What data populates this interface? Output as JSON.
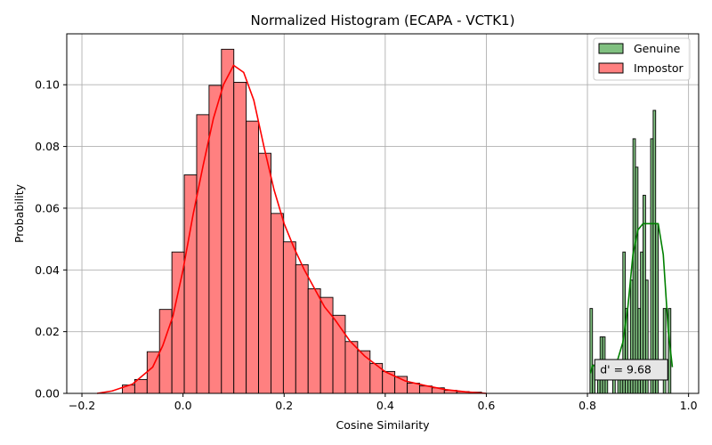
{
  "chart_data": {
    "type": "bar",
    "title": "Normalized Histogram (ECAPA - VCTK1)",
    "xlabel": "Cosine Similarity",
    "ylabel": "Probability",
    "xlim": [
      -0.23,
      1.02
    ],
    "ylim": [
      0.0,
      0.1165
    ],
    "grid": true,
    "legend_position": "top-right",
    "x_ticks": [
      -0.2,
      0.0,
      0.2,
      0.4,
      0.6,
      0.8,
      1.0
    ],
    "x_tick_labels": [
      "−0.2",
      "0.0",
      "0.2",
      "0.4",
      "0.6",
      "0.8",
      "1.0"
    ],
    "y_ticks": [
      0.0,
      0.02,
      0.04,
      0.06,
      0.08,
      0.1
    ],
    "y_tick_labels": [
      "0.00",
      "0.02",
      "0.04",
      "0.06",
      "0.08",
      "0.10"
    ],
    "series": [
      {
        "name": "Impostor",
        "color": "#ff8080",
        "edge_color": "#000000",
        "bin_width": 0.0245,
        "bin_starts": [
          -0.12,
          -0.0955,
          -0.071,
          -0.0465,
          -0.022,
          0.0025,
          0.027,
          0.0515,
          0.076,
          0.1005,
          0.125,
          0.1495,
          0.174,
          0.1985,
          0.223,
          0.2475,
          0.272,
          0.2965,
          0.321,
          0.3455,
          0.37,
          0.3945,
          0.419,
          0.4435,
          0.468,
          0.4925,
          0.517,
          0.5415,
          0.566
        ],
        "values": [
          0.0027,
          0.0045,
          0.0135,
          0.0272,
          0.0458,
          0.0708,
          0.0903,
          0.0998,
          0.1115,
          0.1008,
          0.0882,
          0.0778,
          0.0583,
          0.0491,
          0.0417,
          0.0339,
          0.0311,
          0.0253,
          0.0168,
          0.0138,
          0.0097,
          0.0071,
          0.0055,
          0.0033,
          0.0024,
          0.0018,
          0.001,
          0.0006,
          0.0004
        ]
      },
      {
        "name": "Genuine",
        "color": "#80c080",
        "edge_color": "#000000",
        "bin_width": 0.005,
        "bin_starts": [
          0.805,
          0.81,
          0.815,
          0.82,
          0.825,
          0.83,
          0.835,
          0.84,
          0.845,
          0.85,
          0.855,
          0.86,
          0.865,
          0.87,
          0.875,
          0.88,
          0.885,
          0.89,
          0.895,
          0.9,
          0.905,
          0.91,
          0.915,
          0.92,
          0.925,
          0.93,
          0.935,
          0.94,
          0.945,
          0.95,
          0.955,
          0.96,
          0.965
        ],
        "values": [
          0.0275,
          0.0092,
          0.0,
          0.0092,
          0.0183,
          0.0183,
          0.0092,
          0.0,
          0.0,
          0.0092,
          0.0,
          0.0092,
          0.0092,
          0.0458,
          0.0275,
          0.0092,
          0.0367,
          0.0825,
          0.0733,
          0.0275,
          0.0458,
          0.0642,
          0.0367,
          0.0,
          0.0825,
          0.0917,
          0.055,
          0.0,
          0.0,
          0.0275,
          0.0,
          0.0275,
          0.0
        ]
      }
    ],
    "kde": [
      {
        "name": "Impostor",
        "color": "#ff0000",
        "x": [
          -0.17,
          -0.14,
          -0.1,
          -0.06,
          -0.04,
          -0.02,
          0.0,
          0.02,
          0.04,
          0.06,
          0.08,
          0.1,
          0.12,
          0.14,
          0.16,
          0.18,
          0.2,
          0.22,
          0.24,
          0.26,
          0.28,
          0.3,
          0.33,
          0.36,
          0.4,
          0.44,
          0.48,
          0.52,
          0.56,
          0.6
        ],
        "y": [
          0.0,
          0.0008,
          0.003,
          0.0085,
          0.0155,
          0.025,
          0.04,
          0.058,
          0.074,
          0.089,
          0.1,
          0.1063,
          0.104,
          0.095,
          0.08,
          0.066,
          0.055,
          0.047,
          0.04,
          0.034,
          0.028,
          0.024,
          0.017,
          0.012,
          0.007,
          0.004,
          0.0025,
          0.0012,
          0.0005,
          0.0
        ]
      },
      {
        "name": "Genuine",
        "color": "#008000",
        "x": [
          0.806,
          0.81,
          0.82,
          0.83,
          0.84,
          0.85,
          0.86,
          0.87,
          0.88,
          0.89,
          0.9,
          0.91,
          0.92,
          0.93,
          0.94,
          0.95,
          0.96,
          0.968
        ],
        "y": [
          0.0065,
          0.009,
          0.009,
          0.008,
          0.009,
          0.0095,
          0.011,
          0.0165,
          0.028,
          0.045,
          0.053,
          0.055,
          0.055,
          0.055,
          0.055,
          0.045,
          0.02,
          0.0085
        ]
      }
    ],
    "legend": [
      {
        "label": "Genuine",
        "color": "#80c080"
      },
      {
        "label": "Impostor",
        "color": "#ff8080"
      }
    ],
    "annotation": {
      "text": "d' = 9.68",
      "x": 0.825,
      "y": 0.0078
    }
  }
}
